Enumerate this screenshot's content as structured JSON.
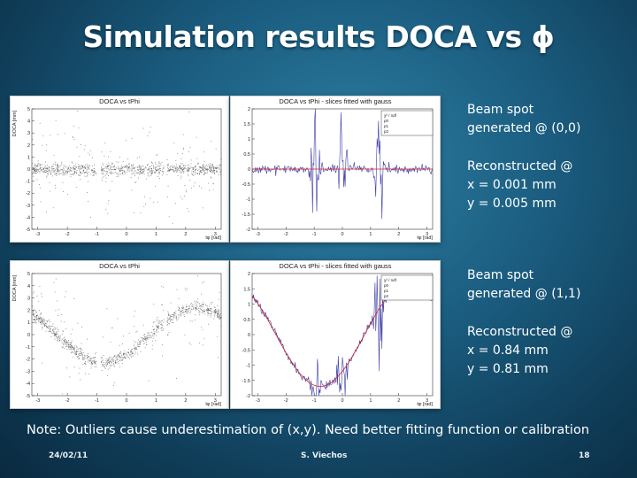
{
  "slide": {
    "title": "Simulation results DOCA vs ϕ",
    "note": "Note: Outliers cause underestimation of (x,y). Need better fitting function or calibration",
    "footer": {
      "date": "24/02/11",
      "author": "S. Viechos",
      "page": "18"
    }
  },
  "text_blocks": {
    "beam1_line1": "Beam spot",
    "beam1_line2": "generated @ (0,0)",
    "reco1_line1": "Reconstructed @",
    "reco1_line2": "x = 0.001 mm",
    "reco1_line3": "y = 0.005 mm",
    "beam2_line1": "Beam spot",
    "beam2_line2": "generated @ (1,1)",
    "reco2_line1": "Reconstructed @",
    "reco2_line2": "x = 0.84 mm",
    "reco2_line3": "y = 0.81 mm"
  },
  "chart_data": [
    {
      "id": "p1",
      "type": "scatter",
      "title": "DOCA vs tPhi",
      "xlabel": "tφ [rad]",
      "ylabel": "DOCA [mm]",
      "xlim": [
        -3.2,
        3.2
      ],
      "ylim": [
        -5,
        5
      ],
      "xticks": [
        "-3",
        "-2",
        "-1",
        "0",
        "1",
        "2",
        "3"
      ],
      "yticks": [
        "-5",
        "-4",
        "-3",
        "-2",
        "-1",
        "0",
        "1",
        "2",
        "3",
        "4",
        "5"
      ],
      "beam_spot": [
        0,
        0
      ]
    },
    {
      "id": "p2",
      "type": "line",
      "title": "DOCA vs tPhi - slices fitted with gauss",
      "xlabel": "tφ [rad]",
      "ylabel": "",
      "xlim": [
        -3.2,
        3.2
      ],
      "ylim": [
        -2,
        2
      ],
      "xticks": [
        "-3",
        "-2",
        "-1",
        "0",
        "1",
        "2",
        "3"
      ],
      "yticks": [
        "-2",
        "-1.5",
        "-1",
        "-0.5",
        "0",
        "0.5",
        "1",
        "1.5",
        "2"
      ],
      "beam_spot": [
        0,
        0
      ],
      "stats": [
        "χ² / ndf",
        "p0",
        "p1",
        "p2"
      ]
    },
    {
      "id": "p3",
      "type": "scatter",
      "title": "DOCA vs tPhi",
      "xlabel": "tφ [rad]",
      "ylabel": "DOCA [mm]",
      "xlim": [
        -3.2,
        3.2
      ],
      "ylim": [
        -5,
        5
      ],
      "xticks": [
        "-3",
        "-2",
        "-1",
        "0",
        "1",
        "2",
        "3"
      ],
      "yticks": [
        "-5",
        "-4",
        "-3",
        "-2",
        "-1",
        "0",
        "1",
        "2",
        "3",
        "4",
        "5"
      ],
      "beam_spot": [
        1,
        1
      ]
    },
    {
      "id": "p4",
      "type": "line",
      "title": "DOCA vs tPhi - slices fitted with gauss",
      "xlabel": "tφ [rad]",
      "ylabel": "",
      "xlim": [
        -3.2,
        3.2
      ],
      "ylim": [
        -2,
        2
      ],
      "xticks": [
        "-3",
        "-2",
        "-1",
        "0",
        "1",
        "2",
        "3"
      ],
      "yticks": [
        "-2",
        "-1.5",
        "-1",
        "-0.5",
        "0",
        "0.5",
        "1",
        "1.5",
        "2"
      ],
      "beam_spot": [
        1,
        1
      ],
      "stats": [
        "χ² / ndf",
        "p0",
        "p1",
        "p2"
      ]
    }
  ]
}
